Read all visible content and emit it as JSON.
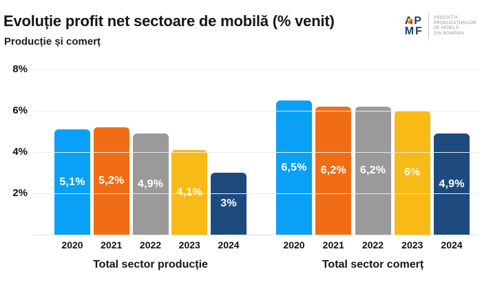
{
  "header": {
    "title": "Evoluție profit net sectoare de mobilă (% venit)",
    "subtitle": "Producție și comerț"
  },
  "logo": {
    "mark_top": "AP",
    "mark_bottom": "MF",
    "org_lines": [
      "ASOCIAȚIA",
      "PRODUCĂTORILOR",
      "DE MOBILĂ",
      "DIN ROMÂNIA"
    ],
    "mark_color": "#20407a"
  },
  "chart_data": {
    "type": "bar",
    "title": "Evoluție profit net sectoare de mobilă (% venit)",
    "subtitle": "Producție și comerț",
    "ylim": [
      0,
      8
    ],
    "grid": true,
    "yticks": [
      {
        "label": "8%",
        "value": 8
      },
      {
        "label": "6%",
        "value": 6
      },
      {
        "label": "4%",
        "value": 4
      },
      {
        "label": "2%",
        "value": 2
      }
    ],
    "categories": [
      "2020",
      "2021",
      "2022",
      "2023",
      "2024"
    ],
    "bar_colors": [
      "#0aa0f5",
      "#f06d15",
      "#9a9a9a",
      "#f8ba17",
      "#1d4b7f"
    ],
    "groups": [
      {
        "label": "Total sector producție",
        "values": [
          5.1,
          5.2,
          4.9,
          4.1,
          3.0
        ],
        "value_labels": [
          "5,1%",
          "5,2%",
          "4,9%",
          "4,1%",
          "3%"
        ]
      },
      {
        "label": "Total sector comerț",
        "values": [
          6.5,
          6.2,
          6.2,
          6.0,
          4.9
        ],
        "value_labels": [
          "6,5%",
          "6,2%",
          "6,2%",
          "6%",
          "4,9%"
        ]
      }
    ]
  }
}
